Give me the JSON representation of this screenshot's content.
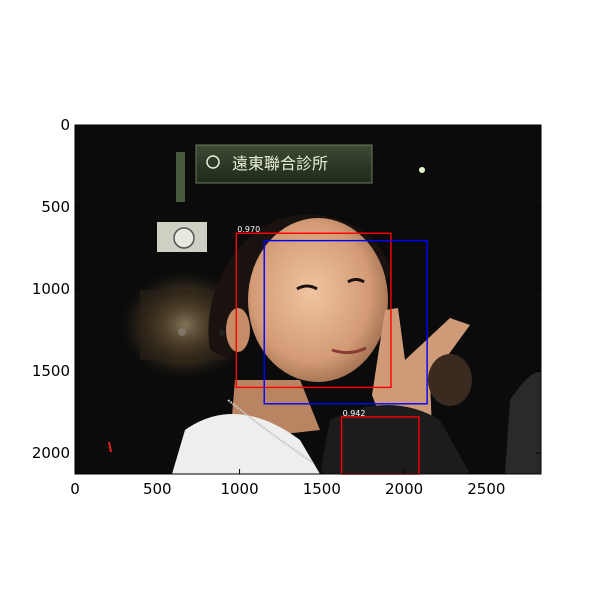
{
  "figure": {
    "image_extent": {
      "width": 2832,
      "height": 2128
    },
    "x_ticks": [
      {
        "value": 0,
        "label": "0"
      },
      {
        "value": 500,
        "label": "500"
      },
      {
        "value": 1000,
        "label": "1000"
      },
      {
        "value": 1500,
        "label": "1500"
      },
      {
        "value": 2000,
        "label": "2000"
      },
      {
        "value": 2500,
        "label": "2500"
      }
    ],
    "y_ticks": [
      {
        "value": 0,
        "label": "0"
      },
      {
        "value": 500,
        "label": "500"
      },
      {
        "value": 1000,
        "label": "1000"
      },
      {
        "value": 1500,
        "label": "1500"
      },
      {
        "value": 2000,
        "label": "2000"
      }
    ],
    "detections": [
      {
        "x0": 980,
        "y0": 660,
        "x1": 1920,
        "y1": 1600,
        "color": "#ff0000",
        "score": "0.970"
      },
      {
        "x0": 1150,
        "y0": 705,
        "x1": 2140,
        "y1": 1700,
        "color": "#0000ff",
        "score": ""
      },
      {
        "x0": 1620,
        "y0": 1780,
        "x1": 2090,
        "y1": 2128,
        "color": "#ff0000",
        "score": "0.942"
      }
    ],
    "sign_text": "遠東聯合診所",
    "colors": {
      "frame": "#000000",
      "photo_bg": "#0b0b0b",
      "skin": "#d9a07c",
      "shirt": "#eeeeee"
    }
  }
}
